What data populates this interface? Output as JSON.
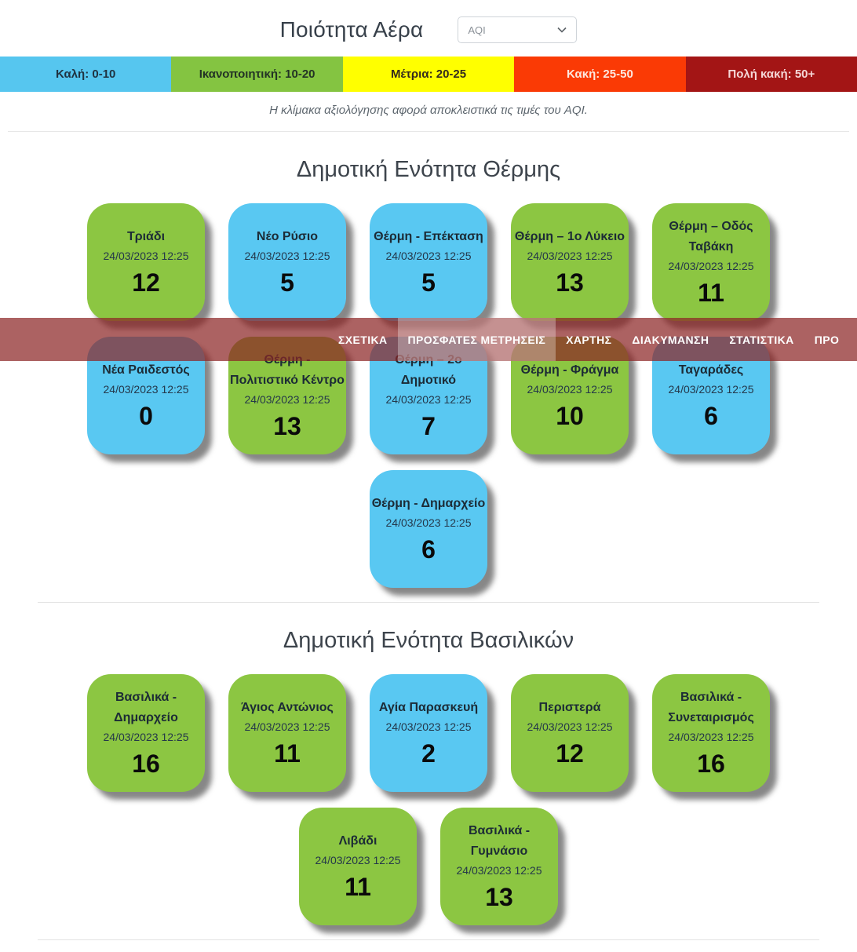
{
  "header": {
    "title": "Ποιότητα Αέρα",
    "metric_select": {
      "value": "AQI"
    }
  },
  "scale": {
    "note": "Η κλίμακα αξιολόγησης αφορά αποκλειστικά τις τιμές του AQI.",
    "levels": [
      {
        "label": "Καλή: 0-10",
        "bg": "#56C6EF",
        "fg": "#1f3240"
      },
      {
        "label": "Ικανοποιητική: 10-20",
        "bg": "#84C441",
        "fg": "#233325"
      },
      {
        "label": "Μέτρια: 20-25",
        "bg": "#FFFF00",
        "fg": "#332a1d"
      },
      {
        "label": "Κακή: 25-50",
        "bg": "#FA3A05",
        "fg": "#FDE8E0"
      },
      {
        "label": "Πολή κακή: 50+",
        "bg": "#A31515",
        "fg": "#F5D7D7"
      }
    ]
  },
  "navbar": {
    "bg": "rgba(140,37,37,0.72)",
    "items": [
      {
        "label": "ΣΧΕΤΙΚΑ",
        "active": false
      },
      {
        "label": "ΠΡΟΣΦΑΤΕΣ ΜΕΤΡΗΣΕΙΣ",
        "active": true
      },
      {
        "label": "ΧΑΡΤΗΣ",
        "active": false
      },
      {
        "label": "ΔΙΑΚΥΜΑΝΣΗ",
        "active": false
      },
      {
        "label": "ΣΤΑΤΙΣΤΙΚΑ",
        "active": false
      },
      {
        "label": "ΠΡΟ",
        "active": false
      }
    ]
  },
  "colors": {
    "card_green": "#8CC642",
    "card_blue": "#59C8F2"
  },
  "sections": [
    {
      "title": "Δημοτική Ενότητα Θέρμης",
      "stations": [
        {
          "name": "Τριάδι",
          "timestamp": "24/03/2023 12:25",
          "value": "12",
          "level": "card_green"
        },
        {
          "name": "Νέο Ρύσιο",
          "timestamp": "24/03/2023 12:25",
          "value": "5",
          "level": "card_blue"
        },
        {
          "name": "Θέρμη - Επέκταση",
          "timestamp": "24/03/2023 12:25",
          "value": "5",
          "level": "card_blue"
        },
        {
          "name": "Θέρμη – 1ο Λύκειο",
          "timestamp": "24/03/2023 12:25",
          "value": "13",
          "level": "card_green"
        },
        {
          "name": "Θέρμη – Οδός Ταβάκη",
          "timestamp": "24/03/2023 12:25",
          "value": "11",
          "level": "card_green"
        },
        {
          "name": "Νέα Ραιδεστός",
          "timestamp": "24/03/2023 12:25",
          "value": "0",
          "level": "card_blue"
        },
        {
          "name": "Θέρμη - Πολιτιστικό Κέντρο",
          "timestamp": "24/03/2023 12:25",
          "value": "13",
          "level": "card_green"
        },
        {
          "name": "Θέρμη – 2ο Δημοτικό",
          "timestamp": "24/03/2023 12:25",
          "value": "7",
          "level": "card_blue"
        },
        {
          "name": "Θέρμη - Φράγμα",
          "timestamp": "24/03/2023 12:25",
          "value": "10",
          "level": "card_green"
        },
        {
          "name": "Ταγαράδες",
          "timestamp": "24/03/2023 12:25",
          "value": "6",
          "level": "card_blue"
        },
        {
          "name": "Θέρμη - Δημαρχείο",
          "timestamp": "24/03/2023 12:25",
          "value": "6",
          "level": "card_blue"
        }
      ]
    },
    {
      "title": "Δημοτική Ενότητα Βασιλικών",
      "stations": [
        {
          "name": "Βασιλικά - Δημαρχείο",
          "timestamp": "24/03/2023 12:25",
          "value": "16",
          "level": "card_green"
        },
        {
          "name": "Άγιος Αντώνιος",
          "timestamp": "24/03/2023 12:25",
          "value": "11",
          "level": "card_green"
        },
        {
          "name": "Αγία Παρασκευή",
          "timestamp": "24/03/2023 12:25",
          "value": "2",
          "level": "card_blue"
        },
        {
          "name": "Περιστερά",
          "timestamp": "24/03/2023 12:25",
          "value": "12",
          "level": "card_green"
        },
        {
          "name": "Βασιλικά - Συνεταιρισμός",
          "timestamp": "24/03/2023 12:25",
          "value": "16",
          "level": "card_green"
        },
        {
          "name": "Λιβάδι",
          "timestamp": "24/03/2023 12:25",
          "value": "11",
          "level": "card_green"
        },
        {
          "name": "Βασιλικά - Γυμνάσιο",
          "timestamp": "24/03/2023 12:25",
          "value": "13",
          "level": "card_green"
        }
      ]
    }
  ]
}
